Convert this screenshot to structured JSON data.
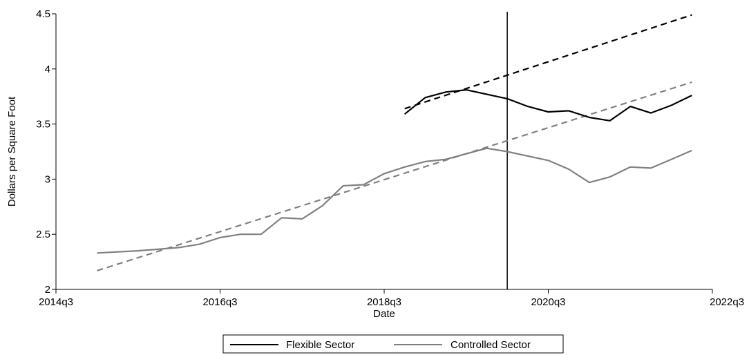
{
  "chart_data": {
    "type": "line",
    "xlabel": "Date",
    "ylabel": "Dollars per Square Foot",
    "x_ticks": [
      "2014q3",
      "2016q3",
      "2018q3",
      "2020q3",
      "2022q3"
    ],
    "y_ticks": [
      "2",
      "2.5",
      "3",
      "3.5",
      "4",
      "4.5"
    ],
    "xlim": [
      "2014q3",
      "2022q3"
    ],
    "ylim": [
      2,
      4.5
    ],
    "grid": false,
    "legend_position": "bottom",
    "vertical_line": {
      "x": "2020q1",
      "color": "#000000"
    },
    "series": [
      {
        "name": "Flexible Sector",
        "color": "#000000",
        "style": "solid",
        "points": [
          [
            "2018q4",
            3.59
          ],
          [
            "2019q1",
            3.74
          ],
          [
            "2019q2",
            3.79
          ],
          [
            "2019q3",
            3.81
          ],
          [
            "2020q1",
            3.73
          ],
          [
            "2020q2",
            3.66
          ],
          [
            "2020q3",
            3.61
          ],
          [
            "2020q4",
            3.62
          ],
          [
            "2021q1",
            3.56
          ],
          [
            "2021q2",
            3.53
          ],
          [
            "2021q3",
            3.66
          ],
          [
            "2021q4",
            3.6
          ],
          [
            "2022q1",
            3.67
          ],
          [
            "2022q2",
            3.76
          ]
        ]
      },
      {
        "name": "Controlled Sector",
        "color": "#808080",
        "style": "solid",
        "points": [
          [
            "2015q1",
            2.33
          ],
          [
            "2015q3",
            2.35
          ],
          [
            "2016q1",
            2.38
          ],
          [
            "2016q2",
            2.41
          ],
          [
            "2016q3",
            2.47
          ],
          [
            "2016q4",
            2.5
          ],
          [
            "2017q1",
            2.5
          ],
          [
            "2017q2",
            2.65
          ],
          [
            "2017q3",
            2.64
          ],
          [
            "2017q4",
            2.76
          ],
          [
            "2018q1",
            2.94
          ],
          [
            "2018q2",
            2.95
          ],
          [
            "2018q3",
            3.05
          ],
          [
            "2018q4",
            3.11
          ],
          [
            "2019q1",
            3.16
          ],
          [
            "2019q2",
            3.18
          ],
          [
            "2019q3",
            3.23
          ],
          [
            "2019q4",
            3.28
          ],
          [
            "2020q1",
            3.25
          ],
          [
            "2020q2",
            3.21
          ],
          [
            "2020q3",
            3.17
          ],
          [
            "2020q4",
            3.09
          ],
          [
            "2021q1",
            2.97
          ],
          [
            "2021q2",
            3.02
          ],
          [
            "2021q3",
            3.11
          ],
          [
            "2021q4",
            3.1
          ],
          [
            "2022q1",
            3.18
          ],
          [
            "2022q2",
            3.26
          ]
        ]
      },
      {
        "color": "#000000",
        "style": "dashed",
        "points": [
          [
            "2018q4",
            3.64
          ],
          [
            "2022q2",
            4.49
          ]
        ]
      },
      {
        "color": "#808080",
        "style": "dashed",
        "points": [
          [
            "2015q1",
            2.17
          ],
          [
            "2022q2",
            3.88
          ]
        ]
      }
    ]
  }
}
